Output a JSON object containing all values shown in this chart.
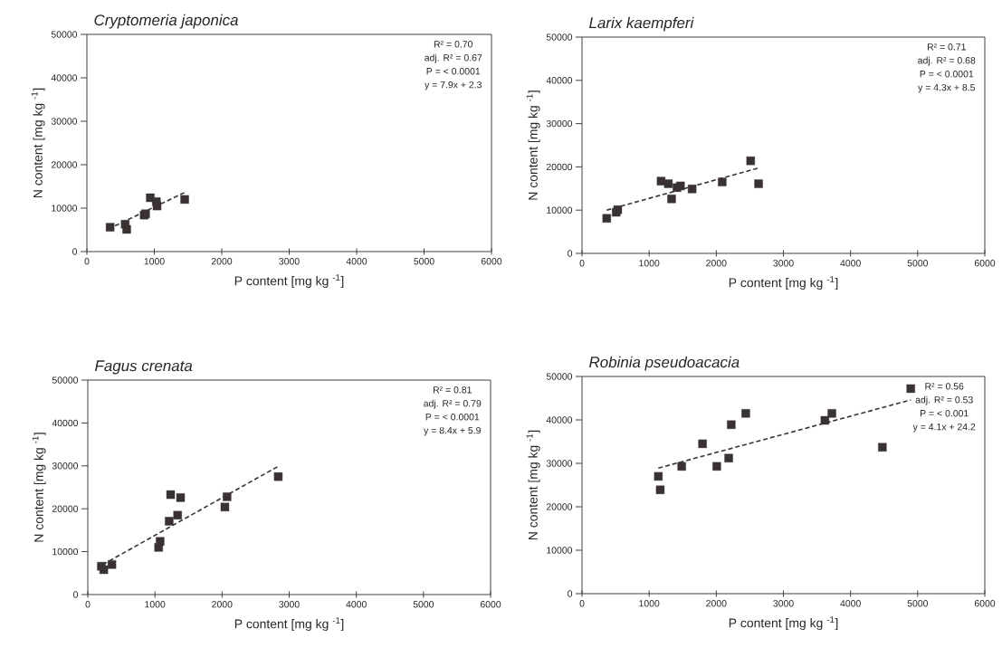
{
  "chart_data": [
    {
      "type": "scatter",
      "title": "Cryptomeria japonica",
      "xlabel": "P content [mg kg $^{-1}$]",
      "ylabel": "N content [mg kg $^{-1}$]",
      "xlim": [
        0,
        6000
      ],
      "ylim": [
        0,
        50000
      ],
      "xticks": [
        0,
        1000,
        2000,
        3000,
        4000,
        5000,
        6000
      ],
      "yticks": [
        0,
        10000,
        20000,
        30000,
        40000,
        50000
      ],
      "grid": false,
      "annotations": [
        "R² = 0.70",
        "adj. R² = 0.67",
        "P = < 0.0001",
        "y = 7.9x + 2.3"
      ],
      "series": [
        {
          "marker": "square",
          "color": "#3a3232",
          "x": [
            344,
            568,
            590,
            850,
            870,
            940,
            1030,
            1040,
            1450
          ],
          "values": [
            5600,
            6300,
            5100,
            8400,
            8700,
            12400,
            11500,
            10500,
            12000
          ]
        },
        {
          "type": "line",
          "marker": "none",
          "line_style": "dashed",
          "color": "#3a3232",
          "x": [
            320,
            1450
          ],
          "values": [
            5200,
            13600
          ]
        }
      ]
    },
    {
      "type": "scatter",
      "title": "Larix kaempferi",
      "xlabel": "P content [mg kg $^{-1}$]",
      "ylabel": "N content [mg kg $^{-1}$]",
      "xlim": [
        0,
        6000
      ],
      "ylim": [
        0,
        50000
      ],
      "xticks": [
        0,
        1000,
        2000,
        3000,
        4000,
        5000,
        6000
      ],
      "yticks": [
        0,
        10000,
        20000,
        30000,
        40000,
        50000
      ],
      "grid": false,
      "annotations": [
        "R² = 0.71",
        "adj. R² = 0.68",
        "P = < 0.0001",
        "y = 4.3x + 8.5"
      ],
      "series": [
        {
          "marker": "square",
          "color": "#3a3232",
          "x": [
            368,
            509,
            532,
            1178,
            1286,
            1334,
            1414,
            1466,
            1640,
            2088,
            2512,
            2630
          ],
          "values": [
            8100,
            9500,
            10100,
            16700,
            16100,
            12600,
            15200,
            15600,
            14900,
            16500,
            21400,
            16100
          ]
        },
        {
          "type": "line",
          "marker": "none",
          "line_style": "dashed",
          "color": "#3a3232",
          "x": [
            368,
            2644
          ],
          "values": [
            10000,
            19800
          ]
        }
      ]
    },
    {
      "type": "scatter",
      "title": "Fagus crenata",
      "xlabel": "P content [mg kg $^{-1}$]",
      "ylabel": "N content [mg kg $^{-1}$]",
      "xlim": [
        0,
        6000
      ],
      "ylim": [
        0,
        50000
      ],
      "xticks": [
        0,
        1000,
        2000,
        3000,
        4000,
        5000,
        6000
      ],
      "yticks": [
        0,
        10000,
        20000,
        30000,
        40000,
        50000
      ],
      "grid": false,
      "annotations": [
        "R² = 0.81",
        "adj. R² = 0.79",
        "P = < 0.0001",
        "y = 8.4x + 5.9"
      ],
      "series": [
        {
          "marker": "square",
          "color": "#3a3232",
          "x": [
            202,
            238,
            359,
            1055,
            1077,
            1234,
            1212,
            1338,
            1382,
            2042,
            2074,
            2837
          ],
          "values": [
            6600,
            5800,
            7000,
            11000,
            12400,
            23300,
            17100,
            18500,
            22600,
            20400,
            22800,
            27500
          ]
        },
        {
          "type": "line",
          "marker": "none",
          "line_style": "dashed",
          "color": "#3a3232",
          "x": [
            224,
            2837
          ],
          "values": [
            7000,
            29900
          ]
        }
      ]
    },
    {
      "type": "scatter",
      "title": "Robinia pseudoacacia",
      "xlabel": "P content [mg kg $^{-1}$]",
      "ylabel": "N content [mg kg $^{-1}$]",
      "xlim": [
        0,
        6000
      ],
      "ylim": [
        0,
        50000
      ],
      "xticks": [
        0,
        1000,
        2000,
        3000,
        4000,
        5000,
        6000
      ],
      "yticks": [
        0,
        10000,
        20000,
        30000,
        40000,
        50000
      ],
      "grid": false,
      "annotations": [
        "R² = 0.56",
        "adj. R² = 0.53",
        "P = < 0.001",
        "y = 4.1x + 24.2"
      ],
      "series": [
        {
          "marker": "square",
          "color": "#3a3232",
          "x": [
            1137,
            1165,
            1485,
            1795,
            2007,
            2185,
            2223,
            2439,
            3618,
            3722,
            4474,
            4897
          ],
          "values": [
            27000,
            23900,
            29300,
            34500,
            29300,
            31200,
            38900,
            41500,
            39900,
            41500,
            33700,
            47200
          ]
        },
        {
          "type": "line",
          "marker": "none",
          "line_style": "dashed",
          "color": "#3a3232",
          "x": [
            1137,
            4897
          ],
          "values": [
            28900,
            44600
          ]
        }
      ]
    }
  ]
}
